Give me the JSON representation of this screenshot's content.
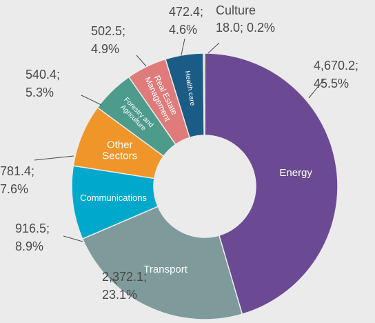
{
  "chart_data": {
    "type": "donut",
    "categories": [
      "Energy",
      "Transport",
      "Communications",
      "Other Sectors",
      "Forestry and Agriculture",
      "Real Estate Management",
      "Health care",
      "Culture"
    ],
    "values": [
      4670.2,
      2372.1,
      916.5,
      781.4,
      540.4,
      502.5,
      472.4,
      18.0
    ],
    "value_labels": [
      "4,670.2; 45.5%",
      "2,372.1; 23.1%",
      "916.5; 8.9%",
      "781.4; 7.6%",
      "540.4; 5.3%",
      "502.5; 4.9%",
      "472.4; 4.6%",
      "18.0; 0.2%"
    ],
    "colors": [
      "#6b4a93",
      "#7f9a9a",
      "#00a8cc",
      "#f0952a",
      "#4d9b8b",
      "#e07b7b",
      "#1b5c86",
      "#a8d063"
    ]
  }
}
